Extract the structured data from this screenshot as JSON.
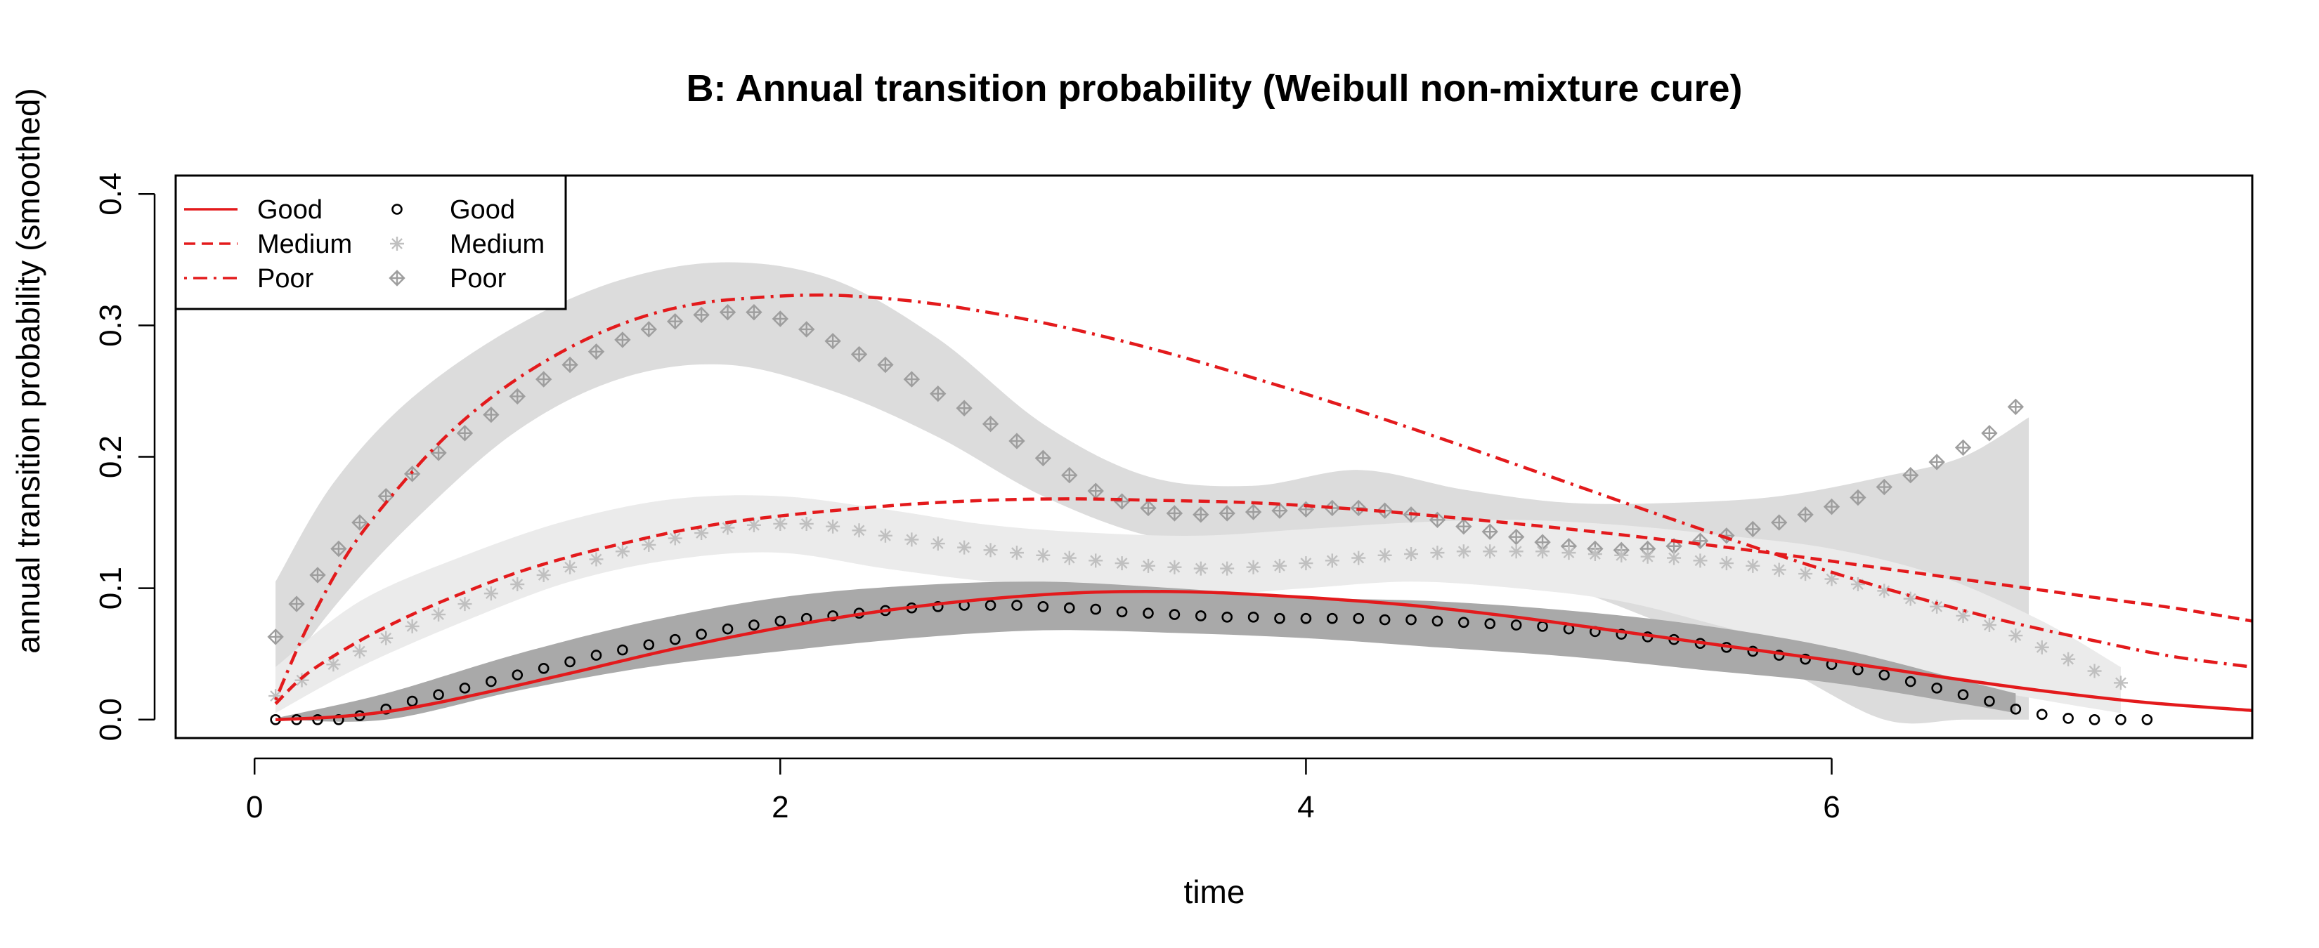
{
  "chart_data": {
    "type": "line",
    "title": "B: Annual transition probability (Weibull non-mixture cure)",
    "xlabel": "time",
    "ylabel": "annual transition probability (smoothed)",
    "xlim": [
      -0.3,
      7.6
    ],
    "ylim": [
      -0.014,
      0.414
    ],
    "x_ticks": [
      0,
      2,
      4,
      6
    ],
    "x_tick_labels": [
      "0",
      "2",
      "4",
      "6"
    ],
    "y_ticks": [
      0.0,
      0.1,
      0.2,
      0.3,
      0.4
    ],
    "y_tick_labels": [
      "0.0",
      "0.1",
      "0.2",
      "0.3",
      "0.4"
    ],
    "legend_position": "top-left",
    "legend": [
      {
        "label": "Good",
        "kind": "line",
        "dash": "solid"
      },
      {
        "label": "Medium",
        "kind": "line",
        "dash": "dashed"
      },
      {
        "label": "Poor",
        "kind": "line",
        "dash": "dotdash"
      },
      {
        "label": "Good",
        "kind": "point",
        "shape": "circle"
      },
      {
        "label": "Medium",
        "kind": "point",
        "shape": "asterisk"
      },
      {
        "label": "Poor",
        "kind": "point",
        "shape": "diamond-plus"
      }
    ],
    "bands": [
      {
        "group": "Poor",
        "color": "#dcdcdc",
        "x": [
          0.08,
          0.3,
          0.6,
          1.0,
          1.4,
          1.8,
          2.2,
          2.6,
          3.0,
          3.4,
          3.8,
          4.2,
          4.6,
          5.0,
          5.4,
          5.8,
          6.2,
          6.5,
          6.75
        ],
        "upper": [
          0.105,
          0.18,
          0.245,
          0.3,
          0.335,
          0.348,
          0.335,
          0.29,
          0.225,
          0.185,
          0.178,
          0.19,
          0.175,
          0.165,
          0.165,
          0.17,
          0.185,
          0.2,
          0.23
        ],
        "lower": [
          0.025,
          0.085,
          0.15,
          0.22,
          0.26,
          0.27,
          0.25,
          0.215,
          0.17,
          0.14,
          0.13,
          0.13,
          0.12,
          0.1,
          0.07,
          0.04,
          0.0,
          0.0,
          0.0
        ]
      },
      {
        "group": "Medium",
        "color": "#ebebeb",
        "x": [
          0.08,
          0.4,
          0.8,
          1.2,
          1.6,
          2.0,
          2.4,
          2.8,
          3.2,
          3.6,
          4.0,
          4.4,
          4.8,
          5.2,
          5.6,
          6.0,
          6.4,
          6.8,
          7.1
        ],
        "upper": [
          0.04,
          0.09,
          0.125,
          0.152,
          0.168,
          0.17,
          0.16,
          0.148,
          0.142,
          0.14,
          0.145,
          0.15,
          0.152,
          0.148,
          0.14,
          0.13,
          0.11,
          0.075,
          0.04
        ],
        "lower": [
          0.005,
          0.04,
          0.075,
          0.105,
          0.122,
          0.127,
          0.115,
          0.105,
          0.1,
          0.095,
          0.1,
          0.105,
          0.1,
          0.09,
          0.07,
          0.05,
          0.03,
          0.015,
          0.005
        ]
      },
      {
        "group": "Good",
        "color": "#a9a9a9",
        "x": [
          0.1,
          0.5,
          1.0,
          1.5,
          2.0,
          2.5,
          3.0,
          3.5,
          4.0,
          4.5,
          5.0,
          5.5,
          6.0,
          6.5,
          6.7
        ],
        "upper": [
          0.002,
          0.02,
          0.05,
          0.075,
          0.093,
          0.102,
          0.105,
          0.1,
          0.093,
          0.09,
          0.083,
          0.072,
          0.055,
          0.03,
          0.02
        ],
        "lower": [
          0.0,
          0.0,
          0.022,
          0.04,
          0.052,
          0.062,
          0.068,
          0.066,
          0.062,
          0.055,
          0.048,
          0.038,
          0.028,
          0.012,
          0.005
        ]
      }
    ],
    "point_series": [
      {
        "group": "Poor",
        "shape": "diamond-plus",
        "color": "#9e9e9e",
        "x": [
          0.08,
          0.16,
          0.24,
          0.32,
          0.4,
          0.5,
          0.6,
          0.7,
          0.8,
          0.9,
          1.0,
          1.1,
          1.2,
          1.3,
          1.4,
          1.5,
          1.6,
          1.7,
          1.8,
          1.9,
          2.0,
          2.1,
          2.2,
          2.3,
          2.4,
          2.5,
          2.6,
          2.7,
          2.8,
          2.9,
          3.0,
          3.1,
          3.2,
          3.3,
          3.4,
          3.5,
          3.6,
          3.7,
          3.8,
          3.9,
          4.0,
          4.1,
          4.2,
          4.3,
          4.4,
          4.5,
          4.6,
          4.7,
          4.8,
          4.9,
          5.0,
          5.1,
          5.2,
          5.3,
          5.4,
          5.5,
          5.6,
          5.7,
          5.8,
          5.9,
          6.0,
          6.1,
          6.2,
          6.3,
          6.4,
          6.5,
          6.6,
          6.7
        ],
        "y": [
          0.063,
          0.088,
          0.11,
          0.13,
          0.15,
          0.17,
          0.187,
          0.203,
          0.218,
          0.232,
          0.246,
          0.259,
          0.27,
          0.28,
          0.289,
          0.297,
          0.303,
          0.308,
          0.31,
          0.31,
          0.305,
          0.297,
          0.288,
          0.278,
          0.27,
          0.259,
          0.248,
          0.237,
          0.225,
          0.212,
          0.199,
          0.186,
          0.174,
          0.166,
          0.161,
          0.157,
          0.156,
          0.157,
          0.158,
          0.159,
          0.16,
          0.161,
          0.161,
          0.159,
          0.156,
          0.152,
          0.147,
          0.143,
          0.139,
          0.135,
          0.132,
          0.13,
          0.129,
          0.13,
          0.132,
          0.136,
          0.14,
          0.145,
          0.15,
          0.156,
          0.162,
          0.169,
          0.177,
          0.186,
          0.196,
          0.207,
          0.218,
          0.238
        ]
      },
      {
        "group": "Medium",
        "shape": "asterisk",
        "color": "#c0c0c0",
        "x": [
          0.08,
          0.18,
          0.3,
          0.4,
          0.5,
          0.6,
          0.7,
          0.8,
          0.9,
          1.0,
          1.1,
          1.2,
          1.3,
          1.4,
          1.5,
          1.6,
          1.7,
          1.8,
          1.9,
          2.0,
          2.1,
          2.2,
          2.3,
          2.4,
          2.5,
          2.6,
          2.7,
          2.8,
          2.9,
          3.0,
          3.1,
          3.2,
          3.3,
          3.4,
          3.5,
          3.6,
          3.7,
          3.8,
          3.9,
          4.0,
          4.1,
          4.2,
          4.3,
          4.4,
          4.5,
          4.6,
          4.7,
          4.8,
          4.9,
          5.0,
          5.1,
          5.2,
          5.3,
          5.4,
          5.5,
          5.6,
          5.7,
          5.8,
          5.9,
          6.0,
          6.1,
          6.2,
          6.3,
          6.4,
          6.5,
          6.6,
          6.7,
          6.8,
          6.9,
          7.0,
          7.1
        ],
        "y": [
          0.018,
          0.03,
          0.042,
          0.052,
          0.062,
          0.071,
          0.08,
          0.088,
          0.096,
          0.103,
          0.11,
          0.116,
          0.122,
          0.128,
          0.133,
          0.138,
          0.142,
          0.146,
          0.148,
          0.149,
          0.149,
          0.147,
          0.144,
          0.14,
          0.137,
          0.134,
          0.131,
          0.129,
          0.127,
          0.125,
          0.123,
          0.121,
          0.119,
          0.117,
          0.116,
          0.115,
          0.115,
          0.116,
          0.117,
          0.119,
          0.121,
          0.123,
          0.125,
          0.126,
          0.127,
          0.128,
          0.128,
          0.128,
          0.128,
          0.127,
          0.126,
          0.125,
          0.124,
          0.123,
          0.121,
          0.119,
          0.117,
          0.114,
          0.111,
          0.107,
          0.103,
          0.098,
          0.092,
          0.086,
          0.079,
          0.072,
          0.064,
          0.055,
          0.046,
          0.037,
          0.028
        ]
      },
      {
        "group": "Good",
        "shape": "circle",
        "color": "#000000",
        "x": [
          0.08,
          0.16,
          0.24,
          0.32,
          0.4,
          0.5,
          0.6,
          0.7,
          0.8,
          0.9,
          1.0,
          1.1,
          1.2,
          1.3,
          1.4,
          1.5,
          1.6,
          1.7,
          1.8,
          1.9,
          2.0,
          2.1,
          2.2,
          2.3,
          2.4,
          2.5,
          2.6,
          2.7,
          2.8,
          2.9,
          3.0,
          3.1,
          3.2,
          3.3,
          3.4,
          3.5,
          3.6,
          3.7,
          3.8,
          3.9,
          4.0,
          4.1,
          4.2,
          4.3,
          4.4,
          4.5,
          4.6,
          4.7,
          4.8,
          4.9,
          5.0,
          5.1,
          5.2,
          5.3,
          5.4,
          5.5,
          5.6,
          5.7,
          5.8,
          5.9,
          6.0,
          6.1,
          6.2,
          6.3,
          6.4,
          6.5,
          6.6,
          6.7,
          6.8,
          6.9,
          7.0,
          7.1,
          7.2
        ],
        "y": [
          0.0,
          0.0,
          0.0,
          0.0,
          0.003,
          0.008,
          0.014,
          0.019,
          0.024,
          0.029,
          0.034,
          0.039,
          0.044,
          0.049,
          0.053,
          0.057,
          0.061,
          0.065,
          0.069,
          0.072,
          0.075,
          0.077,
          0.079,
          0.081,
          0.083,
          0.085,
          0.086,
          0.087,
          0.087,
          0.087,
          0.086,
          0.085,
          0.084,
          0.082,
          0.081,
          0.08,
          0.079,
          0.078,
          0.078,
          0.077,
          0.077,
          0.077,
          0.077,
          0.076,
          0.076,
          0.075,
          0.074,
          0.073,
          0.072,
          0.071,
          0.069,
          0.067,
          0.065,
          0.063,
          0.061,
          0.058,
          0.055,
          0.052,
          0.049,
          0.046,
          0.042,
          0.038,
          0.034,
          0.029,
          0.024,
          0.019,
          0.014,
          0.008,
          0.004,
          0.001,
          0.0,
          0.0,
          0.0
        ]
      }
    ],
    "line_series": [
      {
        "group": "Poor",
        "dash": "dotdash",
        "color": "#e31a1c",
        "x": [
          0.08,
          0.2,
          0.35,
          0.5,
          0.7,
          0.9,
          1.1,
          1.3,
          1.5,
          1.7,
          1.9,
          2.1,
          2.3,
          2.6,
          3.0,
          3.4,
          3.8,
          4.2,
          4.6,
          5.0,
          5.4,
          5.8,
          6.2,
          6.6,
          7.0,
          7.3,
          7.6
        ],
        "y": [
          0.015,
          0.07,
          0.125,
          0.165,
          0.21,
          0.245,
          0.272,
          0.293,
          0.308,
          0.317,
          0.321,
          0.323,
          0.322,
          0.316,
          0.302,
          0.283,
          0.26,
          0.235,
          0.208,
          0.18,
          0.152,
          0.125,
          0.1,
          0.078,
          0.06,
          0.048,
          0.04
        ]
      },
      {
        "group": "Medium",
        "dash": "dashed",
        "color": "#e31a1c",
        "x": [
          0.08,
          0.2,
          0.4,
          0.6,
          0.8,
          1.0,
          1.2,
          1.4,
          1.6,
          1.8,
          2.0,
          2.2,
          2.5,
          2.8,
          3.1,
          3.4,
          3.8,
          4.2,
          4.6,
          5.0,
          5.4,
          5.8,
          6.2,
          6.6,
          7.0,
          7.3,
          7.6
        ],
        "y": [
          0.012,
          0.035,
          0.06,
          0.08,
          0.097,
          0.112,
          0.124,
          0.134,
          0.143,
          0.15,
          0.155,
          0.159,
          0.164,
          0.167,
          0.168,
          0.167,
          0.165,
          0.16,
          0.153,
          0.145,
          0.136,
          0.126,
          0.115,
          0.104,
          0.093,
          0.085,
          0.075
        ]
      },
      {
        "group": "Good",
        "dash": "solid",
        "color": "#e31a1c",
        "x": [
          0.08,
          0.3,
          0.5,
          0.7,
          1.0,
          1.3,
          1.6,
          2.0,
          2.4,
          2.8,
          3.2,
          3.6,
          4.0,
          4.4,
          4.8,
          5.2,
          5.6,
          6.0,
          6.4,
          6.8,
          7.2,
          7.6
        ],
        "y": [
          0.0,
          0.002,
          0.006,
          0.013,
          0.026,
          0.04,
          0.054,
          0.07,
          0.083,
          0.092,
          0.097,
          0.097,
          0.093,
          0.087,
          0.078,
          0.067,
          0.056,
          0.045,
          0.033,
          0.022,
          0.013,
          0.007
        ]
      }
    ]
  }
}
